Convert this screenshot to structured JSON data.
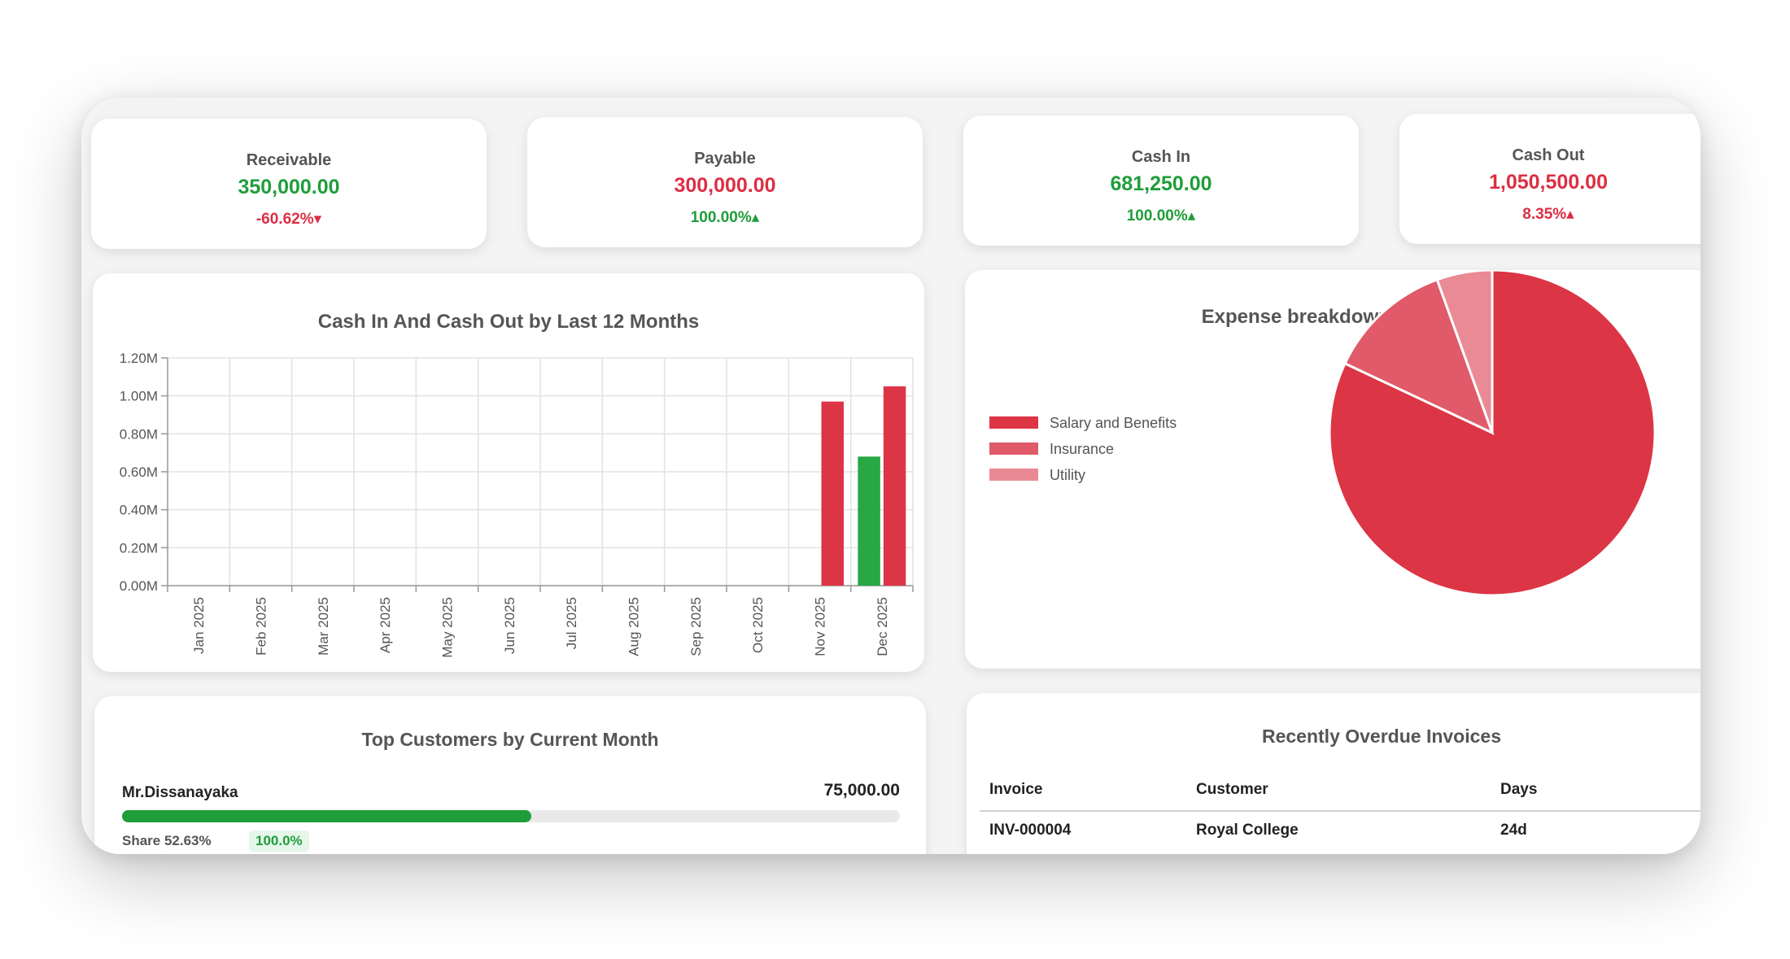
{
  "kpis": [
    {
      "title": "Receivable",
      "value": "350,000.00",
      "change": "-60.62%",
      "arrow": "▾",
      "value_color": "green",
      "change_color": "red"
    },
    {
      "title": "Payable",
      "value": "300,000.00",
      "change": "100.00%",
      "arrow": "▴",
      "value_color": "red",
      "change_color": "green"
    },
    {
      "title": "Cash In",
      "value": "681,250.00",
      "change": "100.00%",
      "arrow": "▴",
      "value_color": "green",
      "change_color": "green"
    },
    {
      "title": "Cash Out",
      "value": "1,050,500.00",
      "change": "8.35%",
      "arrow": "▴",
      "value_color": "red",
      "change_color": "red"
    }
  ],
  "colors": {
    "green": "#1f9d3a",
    "red": "#dc2e43",
    "insurance": "#e05a69",
    "utility": "#ea8a94"
  },
  "chart_data": [
    {
      "type": "bar",
      "title": "Cash In And Cash Out by Last 12 Months",
      "categories": [
        "Jan 2025",
        "Feb 2025",
        "Mar 2025",
        "Apr 2025",
        "May 2025",
        "Jun 2025",
        "Jul 2025",
        "Aug 2025",
        "Sep 2025",
        "Oct 2025",
        "Nov 2025",
        "Dec 2025"
      ],
      "series": [
        {
          "name": "Cash In",
          "color": "#28a745",
          "values": [
            0,
            0,
            0,
            0,
            0,
            0,
            0,
            0,
            0,
            0,
            0,
            0.68
          ]
        },
        {
          "name": "Cash Out",
          "color": "#dc3545",
          "values": [
            0,
            0,
            0,
            0,
            0,
            0,
            0,
            0,
            0,
            0,
            0.97,
            1.05
          ]
        }
      ],
      "ylim": [
        0,
        1.2
      ],
      "yticks": [
        "0.00M",
        "0.20M",
        "0.40M",
        "0.60M",
        "0.80M",
        "1.00M",
        "1.20M"
      ],
      "xlabel": "",
      "ylabel": "",
      "grid": true
    },
    {
      "type": "pie",
      "title": "Expense breakdown by Current Month",
      "labels": [
        "Salary and Benefits",
        "Insurance",
        "Utility"
      ],
      "values": [
        82,
        12.5,
        5.5
      ],
      "colors": [
        "#dc3545",
        "#e05a69",
        "#ea8a94"
      ],
      "legend": "left"
    }
  ],
  "top_customers": {
    "title": "Top Customers by Current Month",
    "items": [
      {
        "name": "Mr.Dissanayaka",
        "amount": "75,000.00",
        "share": "Share 52.63%",
        "share_value": 52.63,
        "badge": "100.0%"
      }
    ]
  },
  "overdue": {
    "title": "Recently Overdue Invoices",
    "headers": [
      "Invoice",
      "Customer",
      "Days"
    ],
    "rows": [
      [
        "INV-000004",
        "Royal College",
        "24d"
      ]
    ]
  }
}
